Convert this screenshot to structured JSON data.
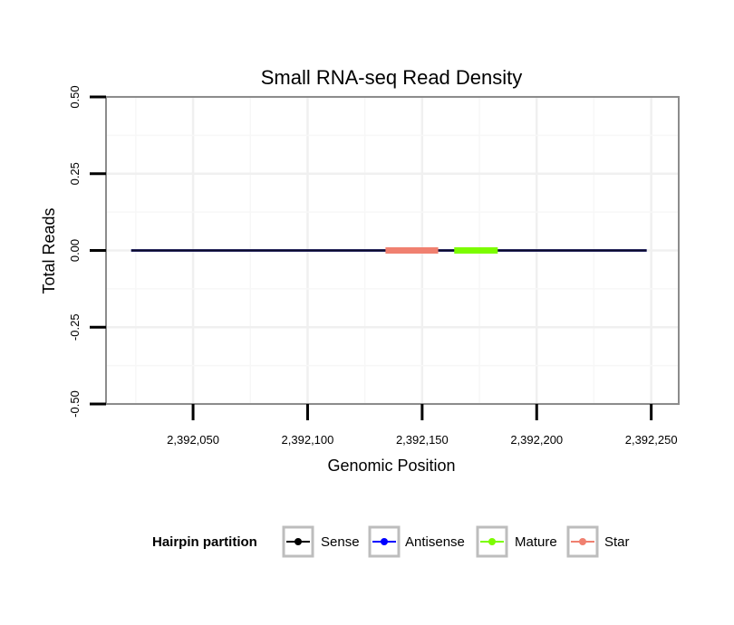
{
  "chart_data": {
    "type": "line",
    "title": "Small RNA-seq Read Density",
    "xlabel": "Genomic Position",
    "ylabel": "Total Reads",
    "xlim": [
      2392012,
      2392262
    ],
    "ylim": [
      -0.5,
      0.5
    ],
    "x_ticks": [
      2392050,
      2392100,
      2392150,
      2392200,
      2392250
    ],
    "x_tick_labels": [
      "2,392,050",
      "2,392,100",
      "2,392,150",
      "2,392,200",
      "2,392,250"
    ],
    "y_ticks": [
      -0.5,
      -0.25,
      0,
      0.25,
      0.5
    ],
    "y_tick_labels": [
      "-0.50",
      "-0.25",
      "0.00",
      "0.25",
      "0.50"
    ],
    "grid": true,
    "series": [
      {
        "name": "Sense",
        "color": "#000000",
        "x": [
          2392023,
          2392248
        ],
        "values": [
          0,
          0
        ]
      },
      {
        "name": "Antisense",
        "color": "#0000ff",
        "x": [
          2392023,
          2392248
        ],
        "values": [
          0,
          0
        ]
      },
      {
        "name": "Star",
        "color": "#f08070",
        "x": [
          2392134,
          2392157
        ],
        "values": [
          0,
          0
        ]
      },
      {
        "name": "Mature",
        "color": "#7cfc00",
        "x": [
          2392164,
          2392183
        ],
        "values": [
          0,
          0
        ]
      }
    ],
    "legend": {
      "title": "Hairpin partition",
      "position": "bottom",
      "items": [
        {
          "label": "Sense",
          "color": "#000000"
        },
        {
          "label": "Antisense",
          "color": "#0000ff"
        },
        {
          "label": "Mature",
          "color": "#7cfc00"
        },
        {
          "label": "Star",
          "color": "#f08070"
        }
      ]
    }
  }
}
